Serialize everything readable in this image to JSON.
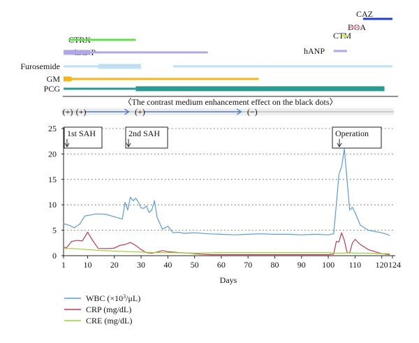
{
  "chart_data": [
    {
      "type": "gantt",
      "rows": [
        {
          "label": "CAZ",
          "color": "#1f3fd6",
          "segments": [
            {
              "start": 113,
              "end": 124
            }
          ]
        },
        {
          "label": "DOA",
          "color": "#f4a6c6",
          "segments": [
            {
              "start": 108,
              "end": 112
            }
          ]
        },
        {
          "label": "CTM",
          "color": "#c6f03c",
          "segments": [
            {
              "start": 105,
              "end": 107
            }
          ]
        },
        {
          "label": "hANP",
          "color": "#b3a6e6",
          "segments": [
            {
              "start": 102,
              "end": 107
            }
          ]
        },
        {
          "label": "CTRX",
          "color": "#62e04a",
          "segments": [
            {
              "start": 3,
              "end": 28
            }
          ]
        },
        {
          "label": "hANP",
          "color": "#b3a6e6",
          "segments": [
            {
              "start": 1,
              "end": 11,
              "thick": true
            },
            {
              "start": 11,
              "end": 55
            }
          ]
        },
        {
          "label": "Furosemide",
          "color": "#bfe0f3",
          "segments": [
            {
              "start": 1,
              "end": 29
            },
            {
              "start": 14,
              "end": 30,
              "thick": true
            },
            {
              "start": 42,
              "end": 124
            }
          ]
        },
        {
          "label": "GM",
          "color": "#f5b51b",
          "segments": [
            {
              "start": 1,
              "end": 4,
              "thick": true
            },
            {
              "start": 1,
              "end": 74
            }
          ]
        },
        {
          "label": "PCG",
          "color": "#2a9a93",
          "segments": [
            {
              "start": 1,
              "end": 28
            },
            {
              "start": 28,
              "end": 121,
              "thick": true
            }
          ]
        }
      ]
    },
    {
      "type": "timeline",
      "title": "〈The contrast medium enhancement effect on the black dots〉",
      "markers": [
        {
          "label": "(+)",
          "day": 1
        },
        {
          "label": "(+)",
          "day": 6
        },
        {
          "label": "(+)",
          "day": 28
        },
        {
          "label": "(−)",
          "day": 70
        }
      ],
      "arrow_segments": [
        {
          "start": 6,
          "end": 28,
          "color": "#3e78c9"
        },
        {
          "start": 28,
          "end": 70,
          "color": "#3e78c9"
        },
        {
          "start": 70,
          "end": 124,
          "color": "#cccccc"
        }
      ]
    },
    {
      "type": "line",
      "xlabel": "Days",
      "ylabel": "",
      "xlim": [
        0,
        124
      ],
      "ylim": [
        0,
        25
      ],
      "x_ticks": [
        "1",
        "10",
        "20",
        "30",
        "40",
        "50",
        "60",
        "70",
        "80",
        "90",
        "100",
        "110",
        "120",
        "124"
      ],
      "y_ticks": [
        "0",
        "5",
        "10",
        "15",
        "20",
        "25"
      ],
      "grid": "horizontal dotted",
      "legend_position": "bottom-left",
      "annotations": [
        {
          "label": "1st SAH",
          "day": 1
        },
        {
          "label": "2nd SAH",
          "day": 24
        },
        {
          "label": "Operation",
          "day": 106
        }
      ],
      "series": [
        {
          "name": "WBC",
          "unit_prefix": "(×10",
          "unit_sup": "3",
          "unit_suffix": "/μL)",
          "color": "#5b9bd5",
          "x": [
            0,
            1,
            3,
            5,
            7,
            9,
            11,
            13,
            15,
            17,
            19,
            21,
            23,
            24,
            25,
            26,
            27,
            28,
            29,
            30,
            31,
            32,
            33,
            34,
            35,
            36,
            38,
            40,
            42,
            44,
            46,
            50,
            55,
            60,
            65,
            70,
            75,
            80,
            85,
            90,
            95,
            100,
            102,
            103,
            104,
            105,
            106,
            107,
            108,
            109,
            110,
            112,
            115,
            120,
            123
          ],
          "y": [
            6.0,
            6.3,
            6.0,
            5.5,
            6.2,
            7.8,
            8.0,
            8.2,
            8.2,
            8.1,
            7.8,
            7.5,
            7.2,
            10.5,
            9.0,
            11.5,
            10.8,
            11.3,
            10.5,
            9.4,
            9.3,
            9.8,
            8.5,
            9.0,
            10.8,
            7.5,
            5.2,
            5.8,
            4.5,
            4.6,
            4.4,
            4.5,
            4.3,
            4.2,
            4.1,
            4.2,
            4.3,
            4.2,
            4.2,
            4.1,
            4.2,
            4.1,
            4.3,
            10.0,
            16.0,
            17.5,
            21.0,
            15.0,
            9.0,
            9.5,
            8.5,
            6.0,
            5.0,
            4.5,
            4.0
          ]
        },
        {
          "name": "CRP",
          "unit_prefix": "(mg/dL)",
          "color": "#c0394f",
          "x": [
            0,
            2,
            4,
            6,
            8,
            10,
            12,
            14,
            16,
            18,
            20,
            22,
            24,
            26,
            28,
            30,
            32,
            34,
            36,
            38,
            40,
            44,
            48,
            52,
            56,
            60,
            70,
            80,
            90,
            100,
            102,
            103,
            104,
            105,
            106,
            107,
            108,
            109,
            110,
            112,
            115,
            118,
            120,
            123
          ],
          "y": [
            1.7,
            1.5,
            2.8,
            3.0,
            2.9,
            4.6,
            2.9,
            1.4,
            1.4,
            1.4,
            1.5,
            2.0,
            2.2,
            2.6,
            2.0,
            1.2,
            0.6,
            0.5,
            0.7,
            1.0,
            0.8,
            0.6,
            0.5,
            0.3,
            0.2,
            0.2,
            0.2,
            0.2,
            0.2,
            0.2,
            0.3,
            2.8,
            2.7,
            4.5,
            3.0,
            0.7,
            0.5,
            2.5,
            3.2,
            2.2,
            1.2,
            0.7,
            0.4,
            0.2
          ]
        },
        {
          "name": "CRE",
          "unit_prefix": "(mg/dL)",
          "color": "#9bd33a",
          "x": [
            0,
            5,
            10,
            15,
            20,
            25,
            30,
            35,
            40,
            50,
            60,
            70,
            80,
            90,
            100,
            102,
            104,
            106,
            108,
            110,
            115,
            120,
            123
          ],
          "y": [
            1.4,
            1.4,
            1.2,
            1.0,
            0.9,
            0.8,
            0.7,
            0.6,
            0.6,
            0.5,
            0.6,
            0.6,
            0.6,
            0.6,
            0.6,
            0.5,
            0.5,
            0.5,
            0.6,
            0.5,
            0.5,
            0.4,
            0.4
          ]
        }
      ]
    }
  ]
}
